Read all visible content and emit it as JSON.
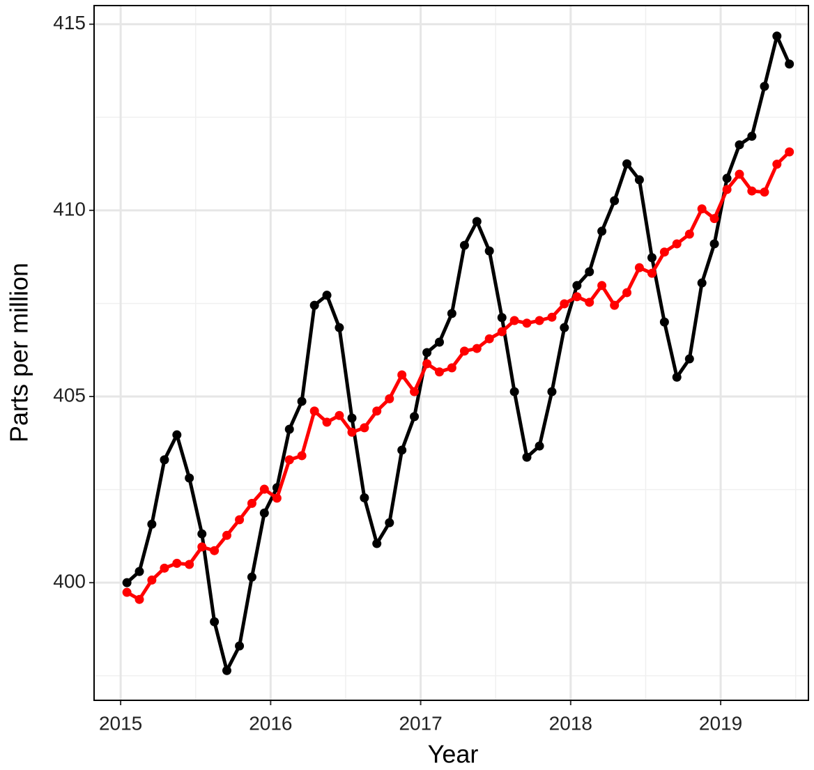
{
  "chart_data": {
    "type": "line",
    "x_label": "Year",
    "y_label": "Parts per million",
    "x": [
      2015.042,
      2015.125,
      2015.208,
      2015.292,
      2015.375,
      2015.458,
      2015.542,
      2015.625,
      2015.708,
      2015.792,
      2015.875,
      2015.958,
      2016.042,
      2016.125,
      2016.208,
      2016.292,
      2016.375,
      2016.458,
      2016.542,
      2016.625,
      2016.708,
      2016.792,
      2016.875,
      2016.958,
      2017.042,
      2017.125,
      2017.208,
      2017.292,
      2017.375,
      2017.458,
      2017.542,
      2017.625,
      2017.708,
      2017.792,
      2017.875,
      2017.958,
      2018.042,
      2018.125,
      2018.208,
      2018.292,
      2018.375,
      2018.458,
      2018.542,
      2018.625,
      2018.708,
      2018.792,
      2018.875,
      2018.958,
      2019.042,
      2019.125,
      2019.208,
      2019.292,
      2019.375,
      2019.458
    ],
    "series": [
      {
        "color": "#000000",
        "values": [
          400.0,
          400.3,
          401.57,
          403.3,
          403.97,
          402.81,
          401.31,
          398.95,
          397.64,
          398.3,
          400.15,
          401.87,
          402.55,
          404.12,
          404.87,
          407.45,
          407.72,
          406.85,
          404.42,
          402.28,
          401.05,
          401.61,
          403.56,
          404.46,
          406.18,
          406.46,
          407.23,
          409.06,
          409.7,
          408.91,
          407.12,
          405.13,
          403.37,
          403.67,
          405.13,
          406.85,
          407.98,
          408.35,
          409.44,
          410.26,
          411.25,
          410.82,
          408.73,
          407.0,
          405.52,
          406.01,
          408.05,
          409.1,
          410.86,
          411.76,
          411.99,
          413.33,
          414.68,
          413.93
        ]
      },
      {
        "color": "#ff0000",
        "values": [
          399.74,
          399.55,
          400.07,
          400.39,
          400.52,
          400.49,
          400.96,
          400.86,
          401.27,
          401.69,
          402.13,
          402.51,
          402.27,
          403.3,
          403.41,
          404.61,
          404.31,
          404.49,
          404.04,
          404.16,
          404.61,
          404.94,
          405.58,
          405.13,
          405.88,
          405.66,
          405.77,
          406.22,
          406.29,
          406.55,
          406.74,
          407.04,
          406.97,
          407.04,
          407.13,
          407.49,
          407.68,
          407.53,
          407.98,
          407.45,
          407.79,
          408.46,
          408.31,
          408.88,
          409.1,
          409.36,
          410.04,
          409.78,
          410.56,
          410.97,
          410.52,
          410.49,
          411.24,
          411.57
        ]
      }
    ],
    "xlim": [
      2014.823,
      2019.585
    ],
    "xticks": [
      2015,
      2016,
      2017,
      2018,
      2019
    ],
    "ylim": [
      396.84,
      415.5
    ],
    "yticks": [
      400,
      405,
      410,
      415
    ],
    "grid": true
  }
}
